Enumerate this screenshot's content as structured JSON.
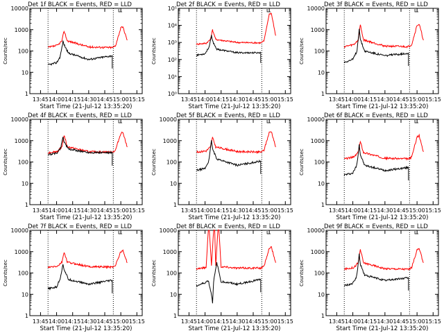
{
  "chart_data": [
    {
      "type": "line",
      "title": "Det 1f BLACK = Events, RED = LLD",
      "xlabel": "Start Time (21-Jul-12 13:35:20)",
      "ylabel": "Counts/sec",
      "xticks": [
        "13:45",
        "14:00",
        "14:15",
        "14:30",
        "14:45",
        "15:00",
        "15:15"
      ],
      "yticks": [
        "1",
        "10",
        "100",
        "1000",
        "10000"
      ],
      "yscale": "log",
      "ylim": [
        1,
        10000
      ],
      "vlines": [
        "13:52",
        "14:53"
      ],
      "series": [
        {
          "color": "#ff0000",
          "x": [
            "13:52",
            "14:01",
            "14:05",
            "14:07",
            "14:10",
            "14:30",
            "14:52",
            "14:55",
            "15:00",
            "15:02",
            "15:06"
          ],
          "values": [
            145,
            185,
            300,
            880,
            300,
            155,
            145,
            175,
            1200,
            1300,
            320
          ]
        },
        {
          "color": "#000000",
          "x": [
            "13:52",
            "14:00",
            "14:03",
            "14:04",
            "14:06",
            "14:07",
            "14:11",
            "14:30",
            "14:52"
          ],
          "values": [
            22,
            28,
            50,
            80,
            280,
            200,
            80,
            40,
            60
          ]
        }
      ]
    },
    {
      "type": "line",
      "title": "Det 2f BLACK = Events, RED = LLD",
      "xlabel": "Start Time (21-Jul-12 13:35:20)",
      "ylabel": "Counts/sec",
      "xticks": [
        "13:45",
        "14:00",
        "14:15",
        "14:30",
        "14:45",
        "15:00",
        "15:15"
      ],
      "yticks": [
        "10⁰",
        "10¹",
        "10²",
        "10³",
        "10⁴",
        "10⁵"
      ],
      "yscale": "log",
      "ylim": [
        1,
        100000
      ],
      "vlines": [
        "13:52",
        "14:53"
      ],
      "series": [
        {
          "color": "#ff0000",
          "x": [
            "13:52",
            "14:01",
            "14:05",
            "14:07",
            "14:10",
            "14:30",
            "14:52",
            "14:55",
            "15:00",
            "15:02",
            "15:06"
          ],
          "values": [
            800,
            900,
            1500,
            5500,
            1500,
            1000,
            950,
            1200,
            45000,
            50000,
            2500
          ]
        },
        {
          "color": "#000000",
          "x": [
            "13:52",
            "14:00",
            "14:03",
            "14:04",
            "14:06",
            "14:07",
            "14:11",
            "14:30",
            "14:52"
          ],
          "values": [
            180,
            220,
            450,
            600,
            2500,
            1200,
            400,
            250,
            250
          ]
        }
      ]
    },
    {
      "type": "line",
      "title": "Det 3f BLACK = Events, RED = LLD",
      "xlabel": "Start Time (21-Jul-12 13:35:20)",
      "ylabel": "Counts/sec",
      "xticks": [
        "13:45",
        "14:00",
        "14:15",
        "14:30",
        "14:45",
        "15:00",
        "15:15"
      ],
      "yticks": [
        "1",
        "10",
        "100",
        "1000",
        "10000"
      ],
      "yscale": "log",
      "ylim": [
        1,
        10000
      ],
      "vlines": [
        "13:52",
        "14:53"
      ],
      "series": [
        {
          "color": "#ff0000",
          "x": [
            "13:52",
            "14:01",
            "14:05",
            "14:07",
            "14:10",
            "14:30",
            "14:52",
            "14:55",
            "15:00",
            "15:02",
            "15:06"
          ],
          "values": [
            160,
            200,
            330,
            1700,
            330,
            170,
            160,
            200,
            1600,
            1800,
            320
          ]
        },
        {
          "color": "#000000",
          "x": [
            "13:52",
            "14:00",
            "14:03",
            "14:04",
            "14:06",
            "14:07",
            "14:11",
            "14:30",
            "14:52"
          ],
          "values": [
            30,
            40,
            80,
            110,
            1200,
            350,
            100,
            60,
            80
          ]
        }
      ]
    },
    {
      "type": "line",
      "title": "Det 4f BLACK = Events, RED = LLD",
      "xlabel": "Start Time (21-Jul-12 13:35:20)",
      "ylabel": "Counts/sec",
      "xticks": [
        "13:45",
        "14:00",
        "14:15",
        "14:30",
        "14:45",
        "15:00",
        "15:15"
      ],
      "yticks": [
        "1",
        "10",
        "100",
        "1000",
        "10000"
      ],
      "yscale": "log",
      "ylim": [
        1,
        10000
      ],
      "vlines": [
        "13:52",
        "14:53"
      ],
      "series": [
        {
          "color": "#ff0000",
          "x": [
            "13:52",
            "14:01",
            "14:05",
            "14:07",
            "14:10",
            "14:30",
            "14:52",
            "14:55",
            "15:00",
            "15:02",
            "15:06"
          ],
          "values": [
            270,
            320,
            520,
            1800,
            520,
            300,
            290,
            350,
            2200,
            2500,
            500
          ]
        },
        {
          "color": "#000000",
          "x": [
            "13:52",
            "14:00",
            "14:03",
            "14:04",
            "14:06",
            "14:07",
            "14:11",
            "14:30",
            "14:52"
          ],
          "values": [
            220,
            260,
            400,
            500,
            1600,
            900,
            400,
            280,
            270
          ]
        }
      ]
    },
    {
      "type": "line",
      "title": "Det 5f BLACK = Events, RED = LLD",
      "xlabel": "Start Time (21-Jul-12 13:35:20)",
      "ylabel": "Counts/sec",
      "xticks": [
        "13:45",
        "14:00",
        "14:15",
        "14:30",
        "14:45",
        "15:00",
        "15:15"
      ],
      "yticks": [
        "1",
        "10",
        "100",
        "1000",
        "10000"
      ],
      "yscale": "log",
      "ylim": [
        1,
        10000
      ],
      "vlines": [
        "13:52",
        "14:53"
      ],
      "series": [
        {
          "color": "#ff0000",
          "x": [
            "13:52",
            "14:01",
            "14:05",
            "14:07",
            "14:10",
            "14:30",
            "14:52",
            "14:55",
            "15:00",
            "15:02",
            "15:06"
          ],
          "values": [
            290,
            330,
            500,
            1400,
            500,
            310,
            290,
            350,
            2400,
            2700,
            500
          ]
        },
        {
          "color": "#000000",
          "x": [
            "13:52",
            "14:00",
            "14:03",
            "14:04",
            "14:06",
            "14:07",
            "14:11",
            "14:30",
            "14:52"
          ],
          "values": [
            40,
            50,
            100,
            150,
            1100,
            400,
            140,
            70,
            110
          ]
        }
      ]
    },
    {
      "type": "line",
      "title": "Det 6f BLACK = Events, RED = LLD",
      "xlabel": "Start Time (21-Jul-12 13:35:20)",
      "ylabel": "Counts/sec",
      "xticks": [
        "13:45",
        "14:00",
        "14:15",
        "14:30",
        "14:45",
        "15:00",
        "15:15"
      ],
      "yticks": [
        "1",
        "10",
        "100",
        "1000",
        "10000"
      ],
      "yscale": "log",
      "ylim": [
        1,
        10000
      ],
      "vlines": [
        "13:52",
        "14:53"
      ],
      "series": [
        {
          "color": "#ff0000",
          "x": [
            "13:52",
            "14:01",
            "14:05",
            "14:07",
            "14:10",
            "14:30",
            "14:52",
            "14:55",
            "15:00",
            "15:02",
            "15:06"
          ],
          "values": [
            140,
            170,
            280,
            900,
            280,
            150,
            140,
            170,
            1500,
            1700,
            300
          ]
        },
        {
          "color": "#000000",
          "x": [
            "13:52",
            "14:00",
            "14:03",
            "14:04",
            "14:06",
            "14:07",
            "14:11",
            "14:30",
            "14:52"
          ],
          "values": [
            25,
            30,
            60,
            90,
            700,
            220,
            70,
            40,
            55
          ]
        }
      ]
    },
    {
      "type": "line",
      "title": "Det 7f BLACK = Events, RED = LLD",
      "xlabel": "Start Time (21-Jul-12 13:35:20)",
      "ylabel": "Counts/sec",
      "xticks": [
        "13:45",
        "14:00",
        "14:15",
        "14:30",
        "14:45",
        "15:00",
        "15:15"
      ],
      "yticks": [
        "1",
        "10",
        "100",
        "1000",
        "10000"
      ],
      "yscale": "log",
      "ylim": [
        1,
        10000
      ],
      "vlines": [
        "13:52",
        "14:53"
      ],
      "series": [
        {
          "color": "#ff0000",
          "x": [
            "13:52",
            "14:01",
            "14:05",
            "14:07",
            "14:10",
            "14:30",
            "14:52",
            "14:55",
            "15:00",
            "15:02",
            "15:06"
          ],
          "values": [
            180,
            210,
            320,
            950,
            320,
            200,
            190,
            230,
            1000,
            1100,
            300
          ]
        },
        {
          "color": "#000000",
          "x": [
            "13:52",
            "14:00",
            "14:03",
            "14:04",
            "14:06",
            "14:07",
            "14:11",
            "14:30",
            "14:52"
          ],
          "values": [
            18,
            22,
            50,
            80,
            260,
            150,
            50,
            30,
            45
          ]
        }
      ]
    },
    {
      "type": "line",
      "title": "Det 8f BLACK = Events, RED = LLD",
      "xlabel": "Start Time (21-Jul-12 13:35:20)",
      "ylabel": "Counts/sec",
      "xticks": [
        "13:45",
        "14:00",
        "14:15",
        "14:30",
        "14:45",
        "15:00",
        "15:15"
      ],
      "yticks": [
        "1",
        "10",
        "100",
        "1000",
        "10000"
      ],
      "yscale": "log",
      "ylim": [
        1,
        10000
      ],
      "vlines": [
        "13:52",
        "14:53"
      ],
      "series": [
        {
          "color": "#ff0000",
          "x": [
            "13:52",
            "14:01",
            "14:03",
            "14:04",
            "14:06",
            "14:08",
            "14:09",
            "14:10",
            "14:12",
            "14:13",
            "14:15",
            "14:30",
            "14:52",
            "14:55",
            "15:00",
            "15:02",
            "15:06"
          ],
          "values": [
            160,
            180,
            10000,
            10000,
            220,
            10000,
            10000,
            220,
            10000,
            10000,
            200,
            170,
            170,
            200,
            1500,
            1600,
            300
          ]
        },
        {
          "color": "#000000",
          "x": [
            "13:52",
            "14:00",
            "14:03",
            "14:06",
            "14:07",
            "14:08",
            "14:11",
            "14:15",
            "14:30",
            "14:52"
          ],
          "values": [
            25,
            35,
            45,
            10,
            4,
            40,
            300,
            40,
            30,
            50
          ]
        }
      ]
    },
    {
      "type": "line",
      "title": "Det 9f BLACK = Events, RED = LLD",
      "xlabel": "Start Time (21-Jul-12 13:35:20)",
      "ylabel": "Counts/sec",
      "xticks": [
        "13:45",
        "14:00",
        "14:15",
        "14:30",
        "14:45",
        "15:00",
        "15:15"
      ],
      "yticks": [
        "1",
        "10",
        "100",
        "1000",
        "10000"
      ],
      "yscale": "log",
      "ylim": [
        1,
        10000
      ],
      "vlines": [
        "13:52",
        "14:53"
      ],
      "series": [
        {
          "color": "#ff0000",
          "x": [
            "13:52",
            "14:01",
            "14:05",
            "14:07",
            "14:10",
            "14:30",
            "14:52",
            "14:55",
            "15:00",
            "15:02",
            "15:06"
          ],
          "values": [
            150,
            180,
            300,
            1300,
            300,
            160,
            150,
            180,
            1200,
            1350,
            300
          ]
        },
        {
          "color": "#000000",
          "x": [
            "13:52",
            "14:00",
            "14:03",
            "14:04",
            "14:06",
            "14:07",
            "14:11",
            "14:30",
            "14:52"
          ],
          "values": [
            25,
            32,
            60,
            90,
            800,
            260,
            80,
            45,
            60
          ]
        }
      ]
    }
  ]
}
